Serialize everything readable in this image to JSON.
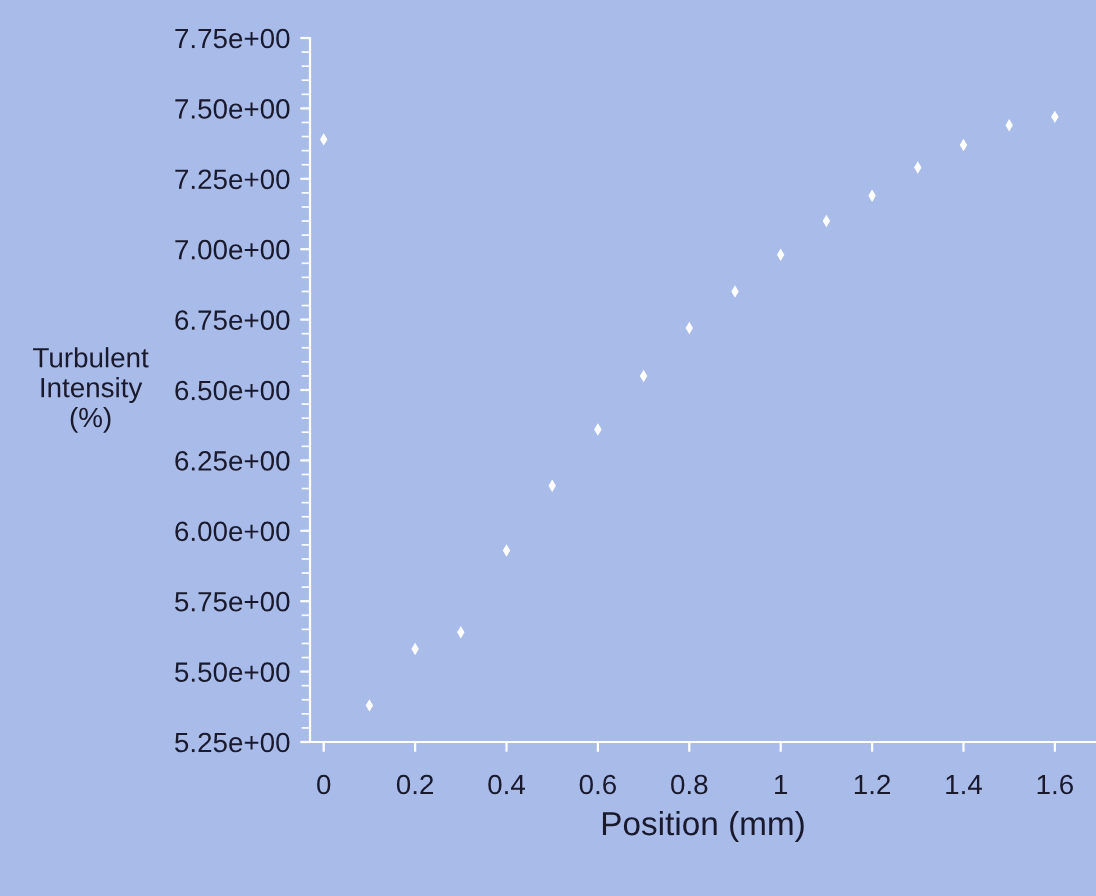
{
  "chart_data": {
    "type": "scatter",
    "xlabel": "Position (mm)",
    "ylabel": "Turbulent\nIntensity\n(%)",
    "x": [
      0,
      0.1,
      0.2,
      0.3,
      0.4,
      0.5,
      0.6,
      0.7,
      0.8,
      0.9,
      1.0,
      1.1,
      1.2,
      1.3,
      1.4,
      1.5,
      1.6
    ],
    "series": [
      {
        "color": "#ffffff",
        "values": [
          7.39,
          5.38,
          5.58,
          5.64,
          5.93,
          6.16,
          6.36,
          6.55,
          6.72,
          6.85,
          6.98,
          7.1,
          7.19,
          7.29,
          7.37,
          7.44,
          7.47
        ]
      }
    ],
    "xlim": [
      -0.03,
      1.69
    ],
    "ylim": [
      5.25,
      7.75
    ],
    "xticks": [
      0,
      0.2,
      0.4,
      0.6,
      0.8,
      1,
      1.2,
      1.4,
      1.6
    ],
    "yticks": [
      {
        "value": 5.25,
        "label": "5.25e+00"
      },
      {
        "value": 5.5,
        "label": "5.50e+00"
      },
      {
        "value": 5.75,
        "label": "5.75e+00"
      },
      {
        "value": 6.0,
        "label": "6.00e+00"
      },
      {
        "value": 6.25,
        "label": "6.25e+00"
      },
      {
        "value": 6.5,
        "label": "6.50e+00"
      },
      {
        "value": 6.75,
        "label": "6.75e+00"
      },
      {
        "value": 7.0,
        "label": "7.00e+00"
      },
      {
        "value": 7.25,
        "label": "7.25e+00"
      },
      {
        "value": 7.5,
        "label": "7.50e+00"
      },
      {
        "value": 7.75,
        "label": "7.75e+00"
      }
    ],
    "marker": "diamond",
    "grid": false,
    "legend": false
  }
}
